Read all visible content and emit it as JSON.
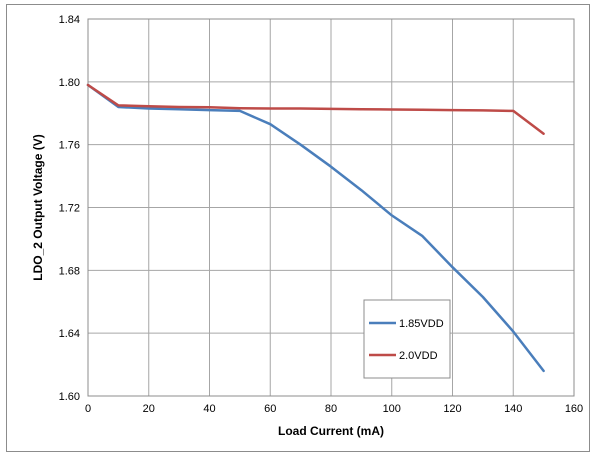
{
  "chart_data": {
    "type": "line",
    "title": "",
    "xlabel": "Load Current (mA)",
    "ylabel": "LDO_2 Output Voltage (V)",
    "xlim": [
      0,
      160
    ],
    "ylim": [
      1.6,
      1.84
    ],
    "x_ticks": [
      "0",
      "20",
      "40",
      "60",
      "80",
      "100",
      "120",
      "140",
      "160"
    ],
    "y_ticks": [
      "1.60",
      "1.64",
      "1.68",
      "1.72",
      "1.76",
      "1.80",
      "1.84"
    ],
    "grid": true,
    "legend_position": "lower-right",
    "series": [
      {
        "name": "1.85VDD",
        "color": "#4a7ebb",
        "x": [
          0,
          10,
          20,
          30,
          40,
          50,
          60,
          70,
          80,
          90,
          100,
          110,
          120,
          130,
          140,
          150
        ],
        "y": [
          1.798,
          1.784,
          1.783,
          1.7825,
          1.782,
          1.7815,
          1.773,
          1.76,
          1.746,
          1.731,
          1.715,
          1.702,
          1.682,
          1.663,
          1.641,
          1.616
        ]
      },
      {
        "name": "2.0VDD",
        "color": "#be4b48",
        "x": [
          0,
          10,
          20,
          30,
          40,
          50,
          60,
          70,
          80,
          90,
          100,
          110,
          120,
          130,
          140,
          150
        ],
        "y": [
          1.798,
          1.785,
          1.7845,
          1.784,
          1.7838,
          1.7832,
          1.783,
          1.783,
          1.7828,
          1.7826,
          1.7824,
          1.7822,
          1.782,
          1.7818,
          1.7815,
          1.767
        ]
      }
    ]
  }
}
